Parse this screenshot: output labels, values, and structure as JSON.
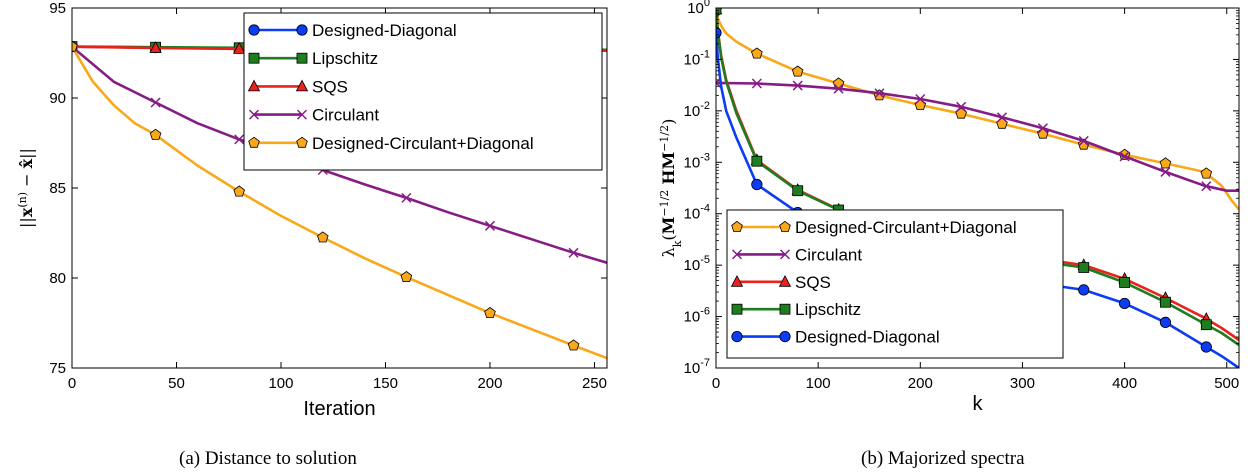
{
  "colors": {
    "designed_diagonal": "#0b3df5",
    "lipschitz": "#1e7d1e",
    "sqs": "#e8221c",
    "circulant": "#861c86",
    "designed_circulant_diagonal": "#f9a81a"
  },
  "chart_data": [
    {
      "type": "line",
      "caption": "(a) Distance to solution",
      "xlabel": "Iteration",
      "ylabel": "||x^(n) − x̂||",
      "xlim": [
        0,
        256
      ],
      "ylim": [
        75,
        95
      ],
      "xticks": [
        "0",
        "50",
        "100",
        "150",
        "200",
        "250"
      ],
      "yticks": [
        "75",
        "80",
        "85",
        "90",
        "95"
      ],
      "grid": false,
      "legend_position": "top-right",
      "legend": [
        "Designed-Diagonal",
        "Lipschitz",
        "SQS",
        "Circulant",
        "Designed-Circulant+Diagonal"
      ],
      "series": [
        {
          "name": "Designed-Diagonal",
          "marker": "circle",
          "x": [
            0,
            40,
            80,
            120,
            160,
            200,
            240,
            256
          ],
          "y": [
            92.85,
            92.8,
            92.76,
            92.73,
            92.7,
            92.68,
            92.65,
            92.64
          ]
        },
        {
          "name": "Lipschitz",
          "marker": "square",
          "x": [
            0,
            40,
            80,
            120,
            160,
            200,
            240,
            256
          ],
          "y": [
            92.86,
            92.82,
            92.79,
            92.76,
            92.73,
            92.71,
            92.69,
            92.68
          ]
        },
        {
          "name": "SQS",
          "marker": "triangle",
          "x": [
            0,
            40,
            80,
            120,
            160,
            200,
            240,
            256
          ],
          "y": [
            92.85,
            92.78,
            92.73,
            92.7,
            92.68,
            92.66,
            92.64,
            92.63
          ]
        },
        {
          "name": "Circulant",
          "marker": "x",
          "x": [
            0,
            20,
            40,
            60,
            80,
            100,
            120,
            140,
            160,
            180,
            200,
            220,
            240,
            256
          ],
          "y": [
            92.85,
            90.9,
            89.75,
            88.6,
            87.7,
            86.9,
            86.0,
            85.2,
            84.45,
            83.65,
            82.9,
            82.15,
            81.4,
            80.85
          ]
        },
        {
          "name": "Designed-Circulant+Diagonal",
          "marker": "pentagon",
          "x": [
            0,
            10,
            20,
            30,
            40,
            60,
            80,
            100,
            120,
            140,
            160,
            180,
            200,
            220,
            240,
            256
          ],
          "y": [
            92.85,
            90.9,
            89.6,
            88.6,
            87.95,
            86.25,
            84.8,
            83.45,
            82.25,
            81.1,
            80.05,
            79.05,
            78.05,
            77.15,
            76.25,
            75.55
          ]
        }
      ]
    },
    {
      "type": "line",
      "caption": "(b) Majorized spectra",
      "xlabel": "k",
      "ylabel": "λ_k(M^(-1/2) H M^(-1/2))",
      "xlim": [
        0,
        512
      ],
      "ylim": [
        1e-07,
        1
      ],
      "yscale": "log",
      "xticks": [
        "0",
        "100",
        "200",
        "300",
        "400",
        "500"
      ],
      "yticks": [
        "10^-7",
        "10^-6",
        "10^-5",
        "10^-4",
        "10^-3",
        "10^-2",
        "10^-1",
        "10^0"
      ],
      "grid": false,
      "legend_position": "bottom-left",
      "legend": [
        "Designed-Circulant+Diagonal",
        "Circulant",
        "SQS",
        "Lipschitz",
        "Designed-Diagonal"
      ],
      "series": [
        {
          "name": "Designed-Circulant+Diagonal",
          "marker": "pentagon",
          "x": [
            0,
            1,
            3,
            6,
            10,
            20,
            40,
            80,
            120,
            160,
            200,
            240,
            280,
            320,
            360,
            400,
            440,
            478,
            495,
            505,
            512
          ],
          "y": [
            0.9,
            0.7,
            0.55,
            0.42,
            0.32,
            0.22,
            0.13,
            0.058,
            0.034,
            0.02,
            0.013,
            0.0088,
            0.0056,
            0.0036,
            0.0022,
            0.0014,
            0.00095,
            0.00065,
            0.00035,
            0.00018,
            0.00012
          ]
        },
        {
          "name": "Circulant",
          "marker": "x",
          "x": [
            0,
            40,
            80,
            120,
            160,
            200,
            240,
            280,
            320,
            360,
            400,
            440,
            478,
            500,
            512
          ],
          "y": [
            0.035,
            0.034,
            0.031,
            0.027,
            0.022,
            0.017,
            0.012,
            0.0075,
            0.0046,
            0.0026,
            0.0013,
            0.00065,
            0.00035,
            0.00028,
            0.00028
          ]
        },
        {
          "name": "SQS",
          "marker": "triangle",
          "x": [
            0,
            2,
            5,
            10,
            20,
            40,
            80,
            120,
            160,
            200,
            240,
            280,
            320,
            360,
            400,
            440,
            478,
            495,
            512
          ],
          "y": [
            0.95,
            0.35,
            0.12,
            0.04,
            0.01,
            0.0011,
            0.00029,
            0.00012,
            6e-05,
            3.5e-05,
            2.3e-05,
            1.6e-05,
            1.3e-05,
            1e-05,
            5.4e-06,
            2.3e-06,
            9.5e-07,
            6e-07,
            3.5e-07
          ]
        },
        {
          "name": "Lipschitz",
          "marker": "square",
          "x": [
            0,
            2,
            5,
            10,
            20,
            40,
            80,
            120,
            160,
            200,
            240,
            280,
            320,
            360,
            400,
            440,
            478,
            495,
            512
          ],
          "y": [
            0.95,
            0.33,
            0.11,
            0.037,
            0.009,
            0.00105,
            0.00028,
            0.000118,
            5.6e-05,
            3.2e-05,
            2.1e-05,
            1.45e-05,
            1.15e-05,
            9e-06,
            4.6e-06,
            1.9e-06,
            7.3e-07,
            4.8e-07,
            2.8e-07
          ]
        },
        {
          "name": "Designed-Diagonal",
          "marker": "circle",
          "x": [
            0,
            2,
            5,
            10,
            20,
            40,
            80,
            120,
            160,
            200,
            240,
            280,
            320,
            360,
            400,
            440,
            478,
            495,
            512
          ],
          "y": [
            0.33,
            0.1,
            0.03,
            0.01,
            0.003,
            0.00037,
            0.000105,
            4.3e-05,
            2e-05,
            1.15e-05,
            7.8e-06,
            5.5e-06,
            4.3e-06,
            3.3e-06,
            1.8e-06,
            7.7e-07,
            2.7e-07,
            1.7e-07,
            1e-07
          ]
        }
      ]
    }
  ]
}
